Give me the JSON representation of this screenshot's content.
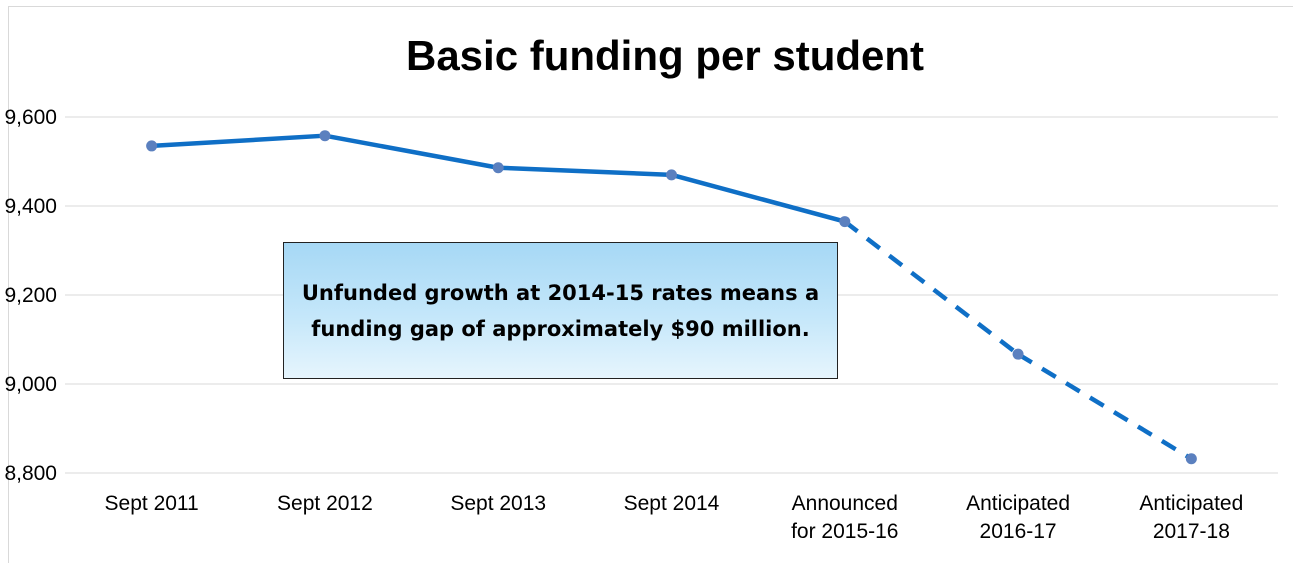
{
  "chart_data": {
    "type": "line",
    "title": "Basic funding per student",
    "categories": [
      [
        "Sept 2011"
      ],
      [
        "Sept 2012"
      ],
      [
        "Sept 2013"
      ],
      [
        "Sept 2014"
      ],
      [
        "Announced",
        "for 2015-16"
      ],
      [
        "Anticipated",
        "2016-17"
      ],
      [
        "Anticipated",
        "2017-18"
      ]
    ],
    "series": [
      {
        "values": [
          9535,
          9558,
          9486,
          9470,
          9365,
          9067,
          8832
        ],
        "style_by_segment": [
          "solid",
          "solid",
          "solid",
          "solid",
          "dashed",
          "dashed"
        ]
      }
    ],
    "ylim": [
      8800,
      9600
    ],
    "yticks": [
      8800,
      9000,
      9200,
      9400,
      9600
    ],
    "ytick_labels": [
      "8,800",
      "9,000",
      "9,200",
      "9,400",
      "9,600"
    ],
    "grid": true,
    "line_color": "#0f6fc6",
    "marker_color": "#5b80bf",
    "annotation": "Unfunded growth at 2014-15 rates means a funding gap of approximately $90 million."
  }
}
